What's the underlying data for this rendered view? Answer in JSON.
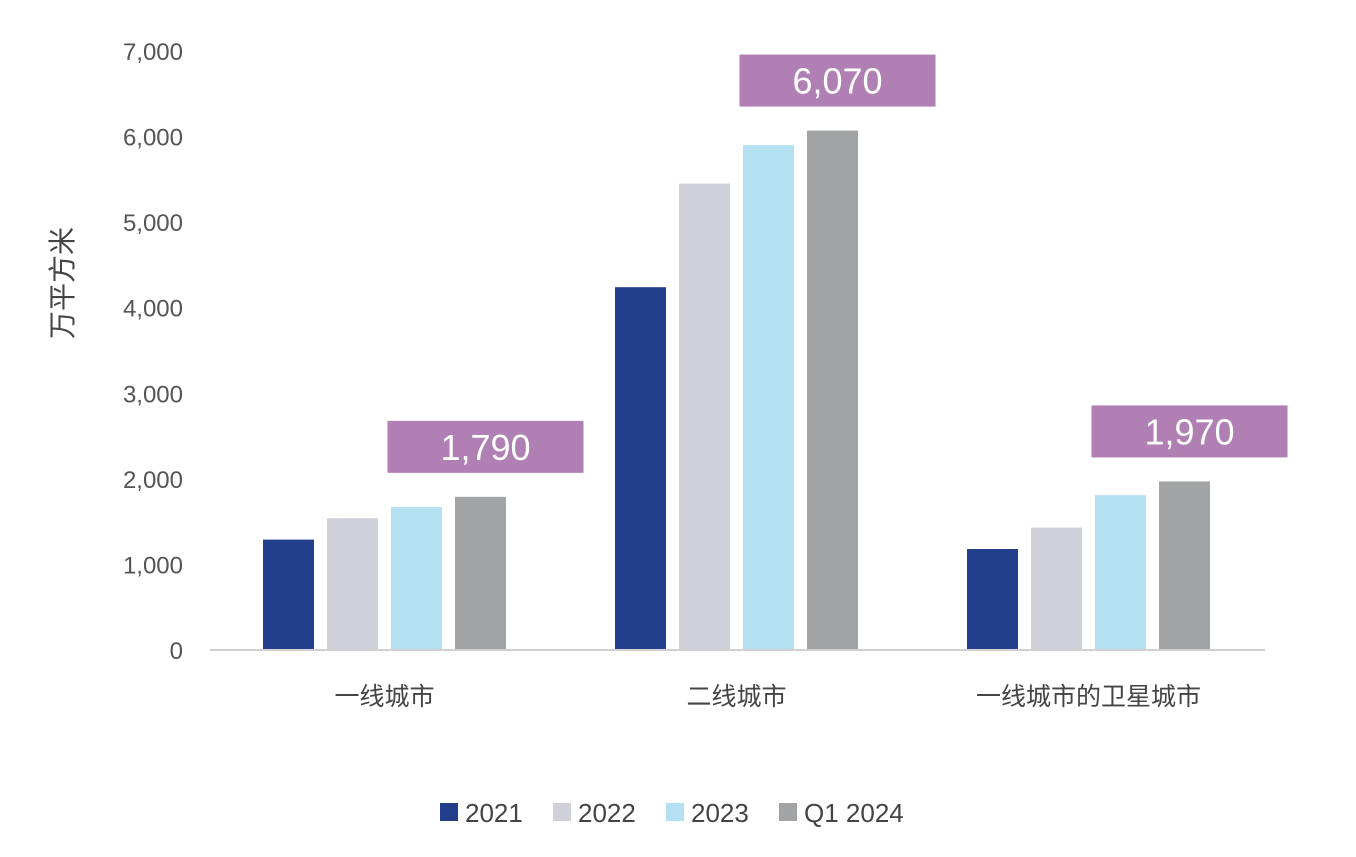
{
  "chart_data": {
    "type": "bar",
    "title": "",
    "xlabel": "",
    "ylabel": "万平方米",
    "ylim": [
      0,
      7000
    ],
    "yticks": [
      0,
      1000,
      2000,
      3000,
      4000,
      5000,
      6000,
      7000
    ],
    "ytick_labels": [
      "0",
      "1,000",
      "2,000",
      "3,000",
      "4,000",
      "5,000",
      "6,000",
      "7,000"
    ],
    "grid": false,
    "categories": [
      "一线城市",
      "二线城市",
      "一线城市的卫星城市"
    ],
    "series": [
      {
        "name": "2021",
        "color": "#233e8b",
        "values": [
          1290,
          4240,
          1180
        ]
      },
      {
        "name": "2022",
        "color": "#cfd0da",
        "values": [
          1540,
          5450,
          1430
        ]
      },
      {
        "name": "2023",
        "color": "#b4e1f2",
        "values": [
          1670,
          5900,
          1810
        ]
      },
      {
        "name": "Q1 2024",
        "color": "#a1a3a4",
        "values": [
          1790,
          6070,
          1970
        ]
      }
    ],
    "annotations": [
      {
        "category_index": 0,
        "text": "1,790",
        "value": 1790
      },
      {
        "category_index": 1,
        "text": "6,070",
        "value": 6070
      },
      {
        "category_index": 2,
        "text": "1,970",
        "value": 1970
      }
    ],
    "annotation_color": "#b07fb3",
    "axis_color": "#d0d0d0",
    "legend_position": "bottom"
  }
}
